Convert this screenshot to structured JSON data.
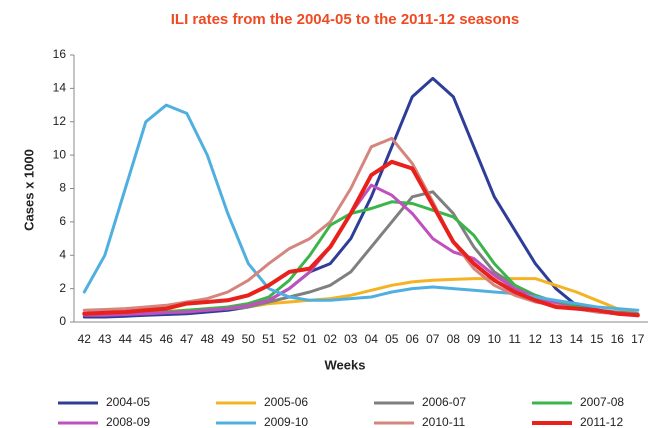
{
  "chart_data": {
    "type": "line",
    "title": "ILI rates from the 2004-05 to the 2011-12 seasons",
    "x_label": "Weeks",
    "y_label": "Cases x 1000",
    "categories": [
      "42",
      "43",
      "44",
      "45",
      "46",
      "47",
      "48",
      "49",
      "50",
      "51",
      "52",
      "01",
      "02",
      "03",
      "04",
      "05",
      "06",
      "07",
      "08",
      "09",
      "10",
      "11",
      "12",
      "13",
      "14",
      "15",
      "16",
      "17"
    ],
    "ylim": [
      0,
      16
    ],
    "yticks": [
      0,
      2,
      4,
      6,
      8,
      10,
      12,
      14,
      16
    ],
    "grid": false,
    "series": [
      {
        "name": "2004-05",
        "color": "#2e3d98",
        "values": [
          0.3,
          0.3,
          0.35,
          0.4,
          0.45,
          0.5,
          0.6,
          0.7,
          0.9,
          1.3,
          2.0,
          3.0,
          3.5,
          5,
          7.5,
          10.5,
          13.5,
          14.6,
          13.5,
          10.5,
          7.5,
          5.5,
          3.5,
          2,
          1,
          0.7,
          0.5,
          0.4
        ]
      },
      {
        "name": "2005-06",
        "color": "#f5b324",
        "values": [
          0.5,
          0.5,
          0.55,
          0.6,
          0.65,
          0.7,
          0.75,
          0.8,
          0.9,
          1.1,
          1.2,
          1.3,
          1.4,
          1.6,
          1.9,
          2.2,
          2.4,
          2.5,
          2.55,
          2.6,
          2.6,
          2.6,
          2.6,
          2.2,
          1.8,
          1.3,
          0.8,
          0.5
        ]
      },
      {
        "name": "2006-07",
        "color": "#7f7f7f",
        "values": [
          0.5,
          0.5,
          0.5,
          0.55,
          0.6,
          0.65,
          0.7,
          0.8,
          0.9,
          1.2,
          1.5,
          1.8,
          2.2,
          3,
          4.5,
          6,
          7.5,
          7.8,
          6.5,
          4.5,
          3,
          2.2,
          1.6,
          1.2,
          0.9,
          0.7,
          0.6,
          0.5
        ]
      },
      {
        "name": "2007-08",
        "color": "#3bb54a",
        "values": [
          0.5,
          0.5,
          0.5,
          0.55,
          0.6,
          0.7,
          0.8,
          0.9,
          1.1,
          1.5,
          2.5,
          4,
          5.8,
          6.5,
          6.8,
          7.2,
          7.1,
          6.7,
          6.3,
          5.2,
          3.5,
          2.2,
          1.6,
          1.2,
          0.9,
          0.7,
          0.5,
          0.4
        ]
      },
      {
        "name": "2008-09",
        "color": "#c04fbf",
        "values": [
          0.4,
          0.4,
          0.45,
          0.5,
          0.55,
          0.6,
          0.7,
          0.8,
          1.0,
          1.3,
          2,
          3,
          4.5,
          6.5,
          8.2,
          7.6,
          6.5,
          5,
          4.2,
          3.8,
          2.8,
          2,
          1.5,
          1.1,
          0.8,
          0.6,
          0.5,
          0.4
        ]
      },
      {
        "name": "2009-10",
        "color": "#4fb0e0",
        "values": [
          1.8,
          4,
          8,
          12,
          13,
          12.5,
          10,
          6.5,
          3.5,
          2,
          1.5,
          1.3,
          1.3,
          1.4,
          1.5,
          1.8,
          2,
          2.1,
          2.0,
          1.9,
          1.8,
          1.7,
          1.5,
          1.3,
          1.1,
          0.9,
          0.8,
          0.7
        ]
      },
      {
        "name": "2010-11",
        "color": "#d4867e",
        "values": [
          0.7,
          0.75,
          0.8,
          0.9,
          1,
          1.2,
          1.4,
          1.8,
          2.5,
          3.5,
          4.4,
          5,
          6,
          8,
          10.5,
          11,
          9.5,
          7.2,
          4.8,
          3.2,
          2.2,
          1.6,
          1.2,
          1,
          0.8,
          0.6,
          0.5,
          0.4
        ]
      },
      {
        "name": "2011-12",
        "color": "#e8211c",
        "values": [
          0.5,
          0.55,
          0.6,
          0.7,
          0.8,
          1.1,
          1.2,
          1.3,
          1.6,
          2.2,
          3,
          3.2,
          4.5,
          6.5,
          8.8,
          9.6,
          9.2,
          7,
          4.8,
          3.5,
          2.5,
          1.8,
          1.3,
          0.9,
          0.8,
          0.7,
          0.5,
          0.4
        ]
      }
    ]
  }
}
